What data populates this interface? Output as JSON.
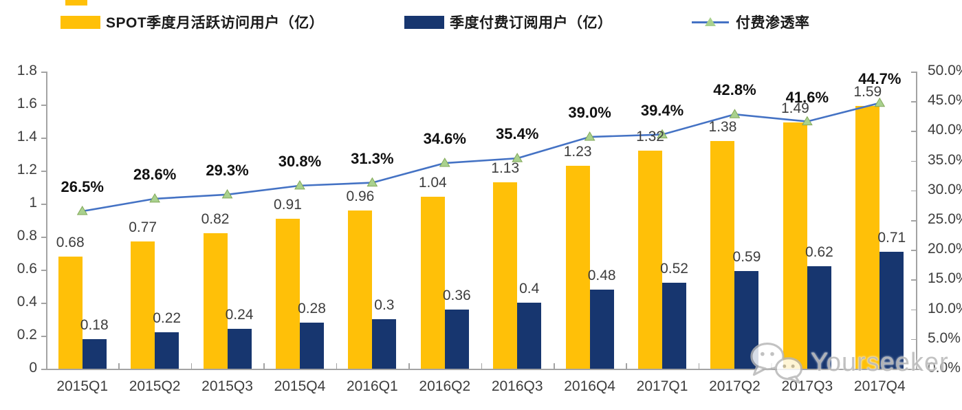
{
  "legend": {
    "items": [
      {
        "label": "SPOT季度月活跃访问用户（亿）",
        "swatch": "bar",
        "color": "#FFC008"
      },
      {
        "label": "季度付费订阅用户（亿）",
        "swatch": "bar",
        "color": "#17366F"
      },
      {
        "label": "付费渗透率",
        "swatch": "line-triangle",
        "color": "#4472C4",
        "marker_color": "#A9D18E"
      }
    ]
  },
  "chart_data": {
    "type": "bar",
    "title": "",
    "categories": [
      "2015Q1",
      "2015Q2",
      "2015Q3",
      "2015Q4",
      "2016Q1",
      "2016Q2",
      "2016Q3",
      "2016Q4",
      "2017Q1",
      "2017Q2",
      "2017Q3",
      "2017Q4"
    ],
    "series": [
      {
        "name": "SPOT季度月活跃访问用户（亿）",
        "type": "bar",
        "axis": "left",
        "color": "#FFC008",
        "values": [
          0.68,
          0.77,
          0.82,
          0.91,
          0.96,
          1.04,
          1.13,
          1.23,
          1.32,
          1.38,
          1.49,
          1.59
        ],
        "labels": [
          "0.68",
          "0.77",
          "0.82",
          "0.91",
          "0.96",
          "1.04",
          "1.13",
          "1.23",
          "1.32",
          "1.38",
          "1.49",
          "1.59"
        ]
      },
      {
        "name": "季度付费订阅用户（亿）",
        "type": "bar",
        "axis": "left",
        "color": "#17366F",
        "values": [
          0.18,
          0.22,
          0.24,
          0.28,
          0.3,
          0.36,
          0.4,
          0.48,
          0.52,
          0.59,
          0.62,
          0.71
        ],
        "labels": [
          "0.18",
          "0.22",
          "0.24",
          "0.28",
          "0.3",
          "0.36",
          "0.4",
          "0.48",
          "0.52",
          "0.59",
          "0.62",
          "0.71"
        ]
      },
      {
        "name": "付费渗透率",
        "type": "line",
        "axis": "right",
        "color": "#4472C4",
        "marker": "triangle",
        "marker_color": "#A9D18E",
        "marker_edge": "#82A858",
        "values": [
          26.5,
          28.6,
          29.3,
          30.8,
          31.3,
          34.6,
          35.4,
          39.0,
          39.4,
          42.8,
          41.6,
          44.7
        ],
        "labels": [
          "26.5%",
          "28.6%",
          "29.3%",
          "30.8%",
          "31.3%",
          "34.6%",
          "35.4%",
          "39.0%",
          "39.4%",
          "42.8%",
          "41.6%",
          "44.7%"
        ]
      }
    ],
    "left_axis": {
      "min": 0,
      "max": 1.8,
      "step": 0.2,
      "tick_labels": [
        "0",
        "0.2",
        "0.4",
        "0.6",
        "0.8",
        "1",
        "1.2",
        "1.4",
        "1.6",
        "1.8"
      ]
    },
    "right_axis": {
      "min": 0,
      "max": 50,
      "step": 5,
      "tick_labels": [
        "0.0%",
        "5.0%",
        "10.0%",
        "15.0%",
        "20.0%",
        "25.0%",
        "30.0%",
        "35.0%",
        "40.0%",
        "45.0%",
        "50.0%"
      ]
    },
    "grid": false,
    "legend_position": "top"
  },
  "watermark": {
    "text": "Yourseeker",
    "icon": "wechat-icon"
  }
}
